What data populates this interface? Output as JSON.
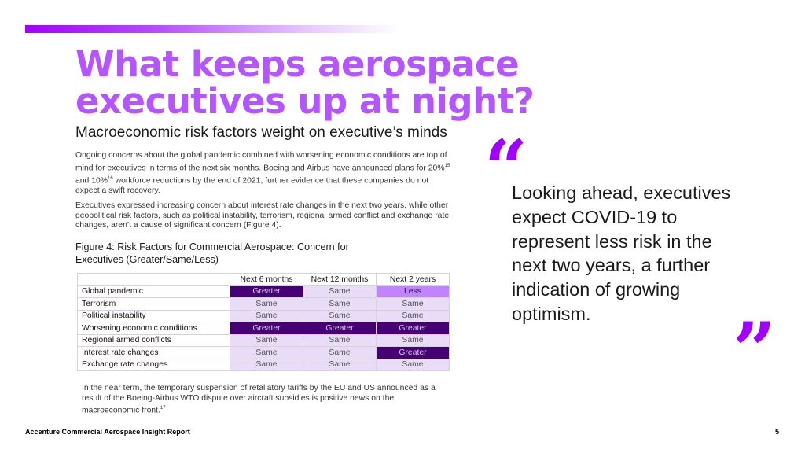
{
  "title": {
    "line1": "What keeps aerospace",
    "line2": "executives up at night?"
  },
  "subtitle": "Macroeconomic risk factors weight on executive’s minds",
  "paragraph1": {
    "part1": "Ongoing concerns about the global pandemic combined with worsening economic conditions are top of mind for executives in terms of the next six months. Boeing and Airbus have announced plans for 20%",
    "sup1": "15",
    "part2": " and 10%",
    "sup2": "16",
    "part3": " workforce reductions by the end of 2021, further evidence that these companies do not expect a swift recovery."
  },
  "paragraph2": "Executives expressed increasing concern about interest rate changes in the next two years, while other geopolitical risk factors, such as political instability, terrorism, regional armed conflict and exchange rate changes, aren’t a cause of significant concern (Figure 4).",
  "figure_caption": "Figure 4: Risk Factors for Commercial Aerospace: Concern for Executives (Greater/Same/Less)",
  "table": {
    "headers": [
      "Next 6 months",
      "Next 12 months",
      "Next 2 years"
    ],
    "rows": [
      {
        "label": "Global pandemic",
        "values": [
          "Greater",
          "Same",
          "Less"
        ]
      },
      {
        "label": "Terrorism",
        "values": [
          "Same",
          "Same",
          "Same"
        ]
      },
      {
        "label": "Political instability",
        "values": [
          "Same",
          "Same",
          "Same"
        ]
      },
      {
        "label": "Worsening economic conditions",
        "values": [
          "Greater",
          "Greater",
          "Greater"
        ]
      },
      {
        "label": "Regional armed conflicts",
        "values": [
          "Same",
          "Same",
          "Same"
        ]
      },
      {
        "label": "Interest rate changes",
        "values": [
          "Same",
          "Same",
          "Greater"
        ]
      },
      {
        "label": "Exchange rate changes",
        "values": [
          "Same",
          "Same",
          "Same"
        ]
      }
    ]
  },
  "paragraph3": {
    "text": "In the near term, the temporary suspension of retaliatory tariffs by the EU and US announced as a result of the Boeing-Airbus WTO dispute over aircraft subsidies is positive news on the macroeconomic front.",
    "sup": "17"
  },
  "quote": {
    "open_mark": "“",
    "close_mark": "”",
    "text": "Looking ahead, executives expect COVID-19 to represent less risk in the next two years, a further indication of growing optimism."
  },
  "footer": "Accenture Commercial Aerospace Insight Report",
  "page_number": "5",
  "colors": {
    "accent": "#a100ff",
    "title": "#b455ff",
    "greater": "#460073",
    "less": "#c084ff",
    "same": "#e9dcf6"
  }
}
